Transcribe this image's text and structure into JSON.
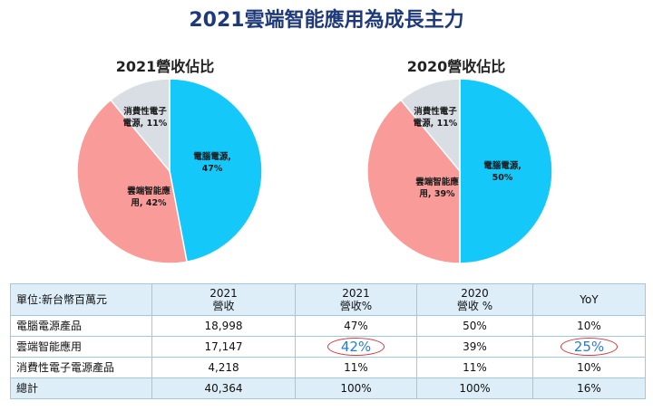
{
  "title": "2021雲端智能應用為成長主力",
  "colors": {
    "pc_power": "#14c8fa",
    "cloud": "#f99b99",
    "consumer": "#d9dde4"
  },
  "chart_data": [
    {
      "type": "pie",
      "title": "2021營收佔比",
      "slices": [
        {
          "label": "電腦電源,",
          "value_label": "47%",
          "value": 47,
          "color": "#14c8fa"
        },
        {
          "label": "雲端智能應",
          "label2": "用, 42%",
          "value": 42,
          "color": "#f99b99"
        },
        {
          "label": "消費性電子",
          "label2": "電源, 11%",
          "value": 11,
          "color": "#d9dde4"
        }
      ]
    },
    {
      "type": "pie",
      "title": "2020營收佔比",
      "slices": [
        {
          "label": "電腦電源,",
          "value_label": "50%",
          "value": 50,
          "color": "#14c8fa"
        },
        {
          "label": "雲端智能應",
          "label2": "用, 39%",
          "value": 39,
          "color": "#f99b99"
        },
        {
          "label": "消費性電子",
          "label2": "電源, 11%",
          "value": 11,
          "color": "#d9dde4"
        }
      ]
    }
  ],
  "table": {
    "header": {
      "unit": "單位:新台幣百萬元",
      "c1a": "2021",
      "c1b": "營收",
      "c2a": "2021",
      "c2b": "營收%",
      "c3a": "2020",
      "c3b": "營收 %",
      "c4": "YoY"
    },
    "rows": [
      {
        "label": "電腦電源產品",
        "rev2021": "18,998",
        "pct2021": "47%",
        "pct2020": "50%",
        "yoy": "10%"
      },
      {
        "label": "雲端智能應用",
        "rev2021": "17,147",
        "pct2021": "42%",
        "pct2020": "39%",
        "yoy": "25%"
      },
      {
        "label": "消費性電子電源產品",
        "rev2021": "4,218",
        "pct2021": "11%",
        "pct2020": "11%",
        "yoy": "10%"
      },
      {
        "label": "總計",
        "rev2021": "40,364",
        "pct2021": "100%",
        "pct2020": "100%",
        "yoy": "16%"
      }
    ]
  }
}
